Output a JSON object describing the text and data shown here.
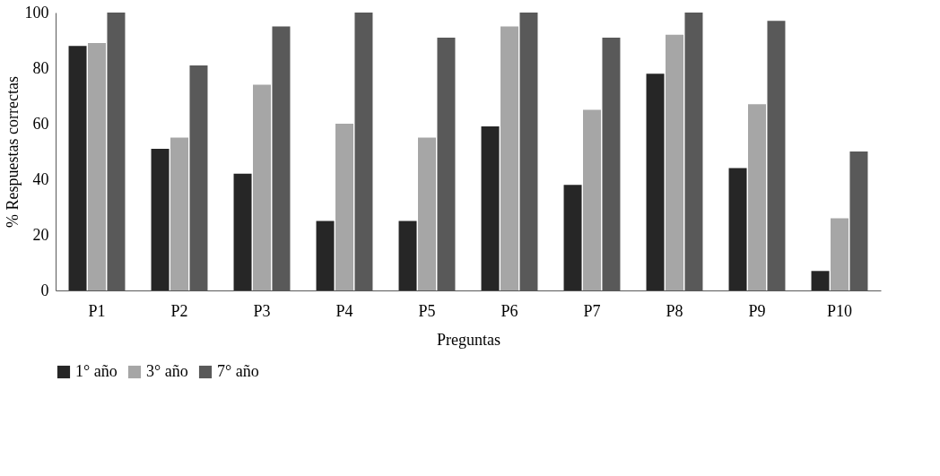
{
  "chart_data": {
    "type": "bar",
    "xlabel": "Preguntas",
    "ylabel": "% Respuestas correctas",
    "categories": [
      "P1",
      "P2",
      "P3",
      "P4",
      "P5",
      "P6",
      "P7",
      "P8",
      "P9",
      "P10"
    ],
    "series": [
      {
        "name": "1° año",
        "color": "#262626",
        "values": [
          88,
          51,
          42,
          25,
          25,
          59,
          38,
          78,
          44,
          7
        ]
      },
      {
        "name": "3° año",
        "color": "#a6a6a6",
        "values": [
          89,
          55,
          74,
          60,
          55,
          95,
          65,
          92,
          67,
          26
        ]
      },
      {
        "name": "7° año",
        "color": "#595959",
        "values": [
          100,
          81,
          95,
          100,
          91,
          100,
          91,
          100,
          97,
          50
        ]
      }
    ],
    "ylim": [
      0,
      100
    ],
    "yticks": [
      0,
      20,
      40,
      60,
      80,
      100
    ],
    "grid": false,
    "legend": "bottom"
  }
}
